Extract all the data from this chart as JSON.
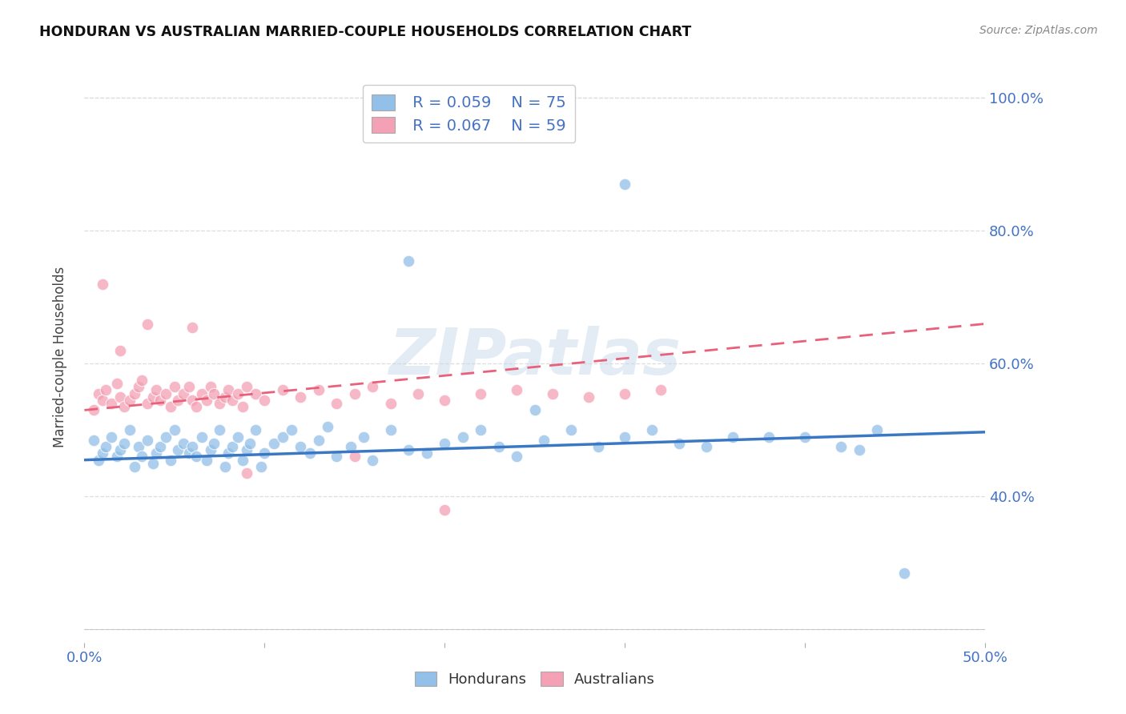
{
  "title": "HONDURAN VS AUSTRALIAN MARRIED-COUPLE HOUSEHOLDS CORRELATION CHART",
  "source": "Source: ZipAtlas.com",
  "ylabel_label": "Married-couple Households",
  "xlim": [
    0.0,
    0.5
  ],
  "ylim": [
    0.18,
    1.04
  ],
  "xticks": [
    0.0,
    0.1,
    0.2,
    0.3,
    0.4,
    0.5
  ],
  "xticklabels": [
    "0.0%",
    "",
    "",
    "",
    "",
    "50.0%"
  ],
  "yticks": [
    0.2,
    0.4,
    0.6,
    0.8,
    1.0
  ],
  "yticklabels_right": [
    "",
    "40.0%",
    "60.0%",
    "80.0%",
    "100.0%"
  ],
  "watermark": "ZIPatlas",
  "legend_blue_r": "R = 0.059",
  "legend_blue_n": "N = 75",
  "legend_pink_r": "R = 0.067",
  "legend_pink_n": "N = 59",
  "blue_color": "#92C0E8",
  "pink_color": "#F4A0B5",
  "blue_line_color": "#3B78C4",
  "pink_line_color": "#E8607A",
  "grid_color": "#DDDDDD",
  "background_color": "#FFFFFF",
  "blue_scatter_x": [
    0.005,
    0.008,
    0.01,
    0.012,
    0.015,
    0.018,
    0.02,
    0.022,
    0.025,
    0.028,
    0.03,
    0.032,
    0.035,
    0.038,
    0.04,
    0.042,
    0.045,
    0.048,
    0.05,
    0.052,
    0.055,
    0.058,
    0.06,
    0.062,
    0.065,
    0.068,
    0.07,
    0.072,
    0.075,
    0.078,
    0.08,
    0.082,
    0.085,
    0.088,
    0.09,
    0.092,
    0.095,
    0.098,
    0.1,
    0.105,
    0.11,
    0.115,
    0.12,
    0.125,
    0.13,
    0.135,
    0.14,
    0.148,
    0.155,
    0.16,
    0.17,
    0.18,
    0.19,
    0.2,
    0.21,
    0.22,
    0.23,
    0.24,
    0.255,
    0.27,
    0.285,
    0.3,
    0.315,
    0.33,
    0.345,
    0.36,
    0.38,
    0.4,
    0.42,
    0.44,
    0.25,
    0.43,
    0.3,
    0.455,
    0.18
  ],
  "blue_scatter_y": [
    0.485,
    0.455,
    0.465,
    0.475,
    0.49,
    0.46,
    0.47,
    0.48,
    0.5,
    0.445,
    0.475,
    0.46,
    0.485,
    0.45,
    0.465,
    0.475,
    0.49,
    0.455,
    0.5,
    0.47,
    0.48,
    0.465,
    0.475,
    0.46,
    0.49,
    0.455,
    0.47,
    0.48,
    0.5,
    0.445,
    0.465,
    0.475,
    0.49,
    0.455,
    0.47,
    0.48,
    0.5,
    0.445,
    0.465,
    0.48,
    0.49,
    0.5,
    0.475,
    0.465,
    0.485,
    0.505,
    0.46,
    0.475,
    0.49,
    0.455,
    0.5,
    0.47,
    0.465,
    0.48,
    0.49,
    0.5,
    0.475,
    0.46,
    0.485,
    0.5,
    0.475,
    0.49,
    0.5,
    0.48,
    0.475,
    0.49,
    0.49,
    0.49,
    0.475,
    0.5,
    0.53,
    0.47,
    0.87,
    0.285,
    0.755
  ],
  "pink_scatter_x": [
    0.005,
    0.008,
    0.01,
    0.012,
    0.015,
    0.018,
    0.02,
    0.022,
    0.025,
    0.028,
    0.03,
    0.032,
    0.035,
    0.038,
    0.04,
    0.042,
    0.045,
    0.048,
    0.05,
    0.052,
    0.055,
    0.058,
    0.06,
    0.062,
    0.065,
    0.068,
    0.07,
    0.072,
    0.075,
    0.078,
    0.08,
    0.082,
    0.085,
    0.088,
    0.09,
    0.095,
    0.1,
    0.11,
    0.12,
    0.13,
    0.14,
    0.15,
    0.16,
    0.17,
    0.185,
    0.2,
    0.22,
    0.24,
    0.26,
    0.28,
    0.3,
    0.32,
    0.01,
    0.02,
    0.035,
    0.06,
    0.09,
    0.15,
    0.2
  ],
  "pink_scatter_y": [
    0.53,
    0.555,
    0.545,
    0.56,
    0.54,
    0.57,
    0.55,
    0.535,
    0.545,
    0.555,
    0.565,
    0.575,
    0.54,
    0.55,
    0.56,
    0.545,
    0.555,
    0.535,
    0.565,
    0.545,
    0.555,
    0.565,
    0.545,
    0.535,
    0.555,
    0.545,
    0.565,
    0.555,
    0.54,
    0.55,
    0.56,
    0.545,
    0.555,
    0.535,
    0.565,
    0.555,
    0.545,
    0.56,
    0.55,
    0.56,
    0.54,
    0.555,
    0.565,
    0.54,
    0.555,
    0.545,
    0.555,
    0.56,
    0.555,
    0.55,
    0.555,
    0.56,
    0.72,
    0.62,
    0.66,
    0.655,
    0.435,
    0.46,
    0.38
  ],
  "blue_trend_x": [
    0.0,
    0.5
  ],
  "blue_trend_y": [
    0.455,
    0.497
  ],
  "pink_trend_x": [
    0.0,
    0.5
  ],
  "pink_trend_y": [
    0.53,
    0.66
  ]
}
